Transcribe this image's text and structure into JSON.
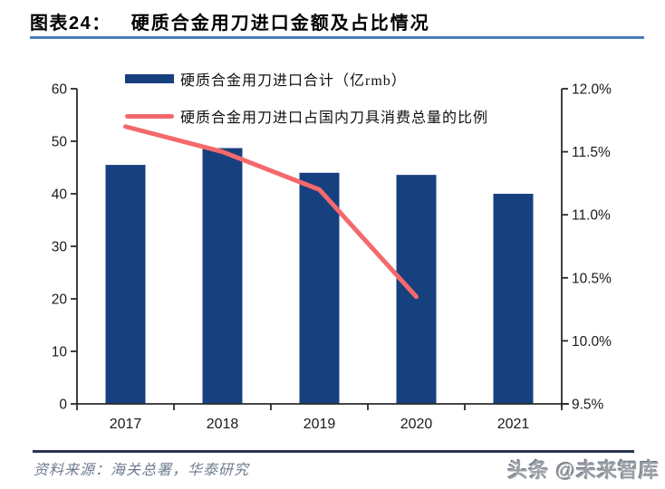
{
  "header": {
    "label": "图表24：",
    "title": "硬质合金用刀进口金额及占比情况",
    "rule_color": "#4A7EBB"
  },
  "legend": {
    "items": [
      {
        "kind": "bar",
        "color": "#17407E",
        "label": "硬质合金用刀进口合计（亿rmb）"
      },
      {
        "kind": "line",
        "color": "#F4696B",
        "label": "硬质合金用刀进口占国内刀具消费总量的比例"
      }
    ]
  },
  "chart_data": {
    "type": "bar",
    "subtype": "bar-plus-line-dual-axis",
    "categories": [
      "2017",
      "2018",
      "2019",
      "2020",
      "2021"
    ],
    "series": [
      {
        "name": "硬质合金用刀进口合计（亿rmb）",
        "type": "bar",
        "axis": "left",
        "color": "#17407E",
        "values": [
          45.5,
          48.7,
          44.0,
          43.6,
          40.0
        ]
      },
      {
        "name": "硬质合金用刀进口占国内刀具消费总量的比例",
        "type": "line",
        "axis": "right",
        "color": "#F4696B",
        "unit": "%",
        "values": [
          11.7,
          11.5,
          11.2,
          10.35,
          null
        ]
      }
    ],
    "left_axis": {
      "min": 0,
      "max": 60,
      "step": 10,
      "tick_labels": [
        "0",
        "10",
        "20",
        "30",
        "40",
        "50",
        "60"
      ]
    },
    "right_axis": {
      "min": 9.5,
      "max": 12.0,
      "step": 0.5,
      "tick_labels": [
        "9.5%",
        "10.0%",
        "10.5%",
        "11.0%",
        "11.5%",
        "12.0%"
      ]
    },
    "grid": false,
    "legend_position": "inside-top-left"
  },
  "footer": {
    "source": "资料来源：海关总署，华泰研究",
    "watermark": "头条 @未来智库",
    "rule_color": "#2A3550"
  }
}
